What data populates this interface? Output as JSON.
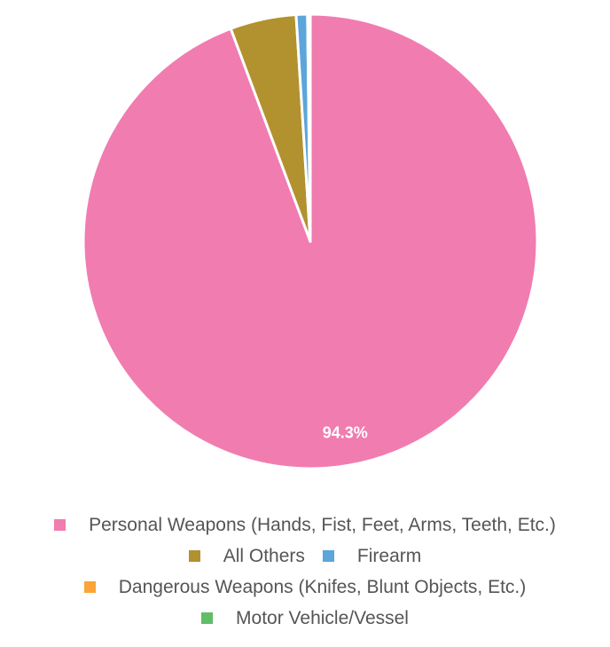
{
  "chart_data": {
    "type": "pie",
    "slices": [
      {
        "label": "Personal Weapons (Hands, Fist, Feet, Arms, Teeth, Etc.)",
        "value": 94.3,
        "color": "#f17cb0",
        "display": "94.3%"
      },
      {
        "label": "All Others",
        "value": 4.7,
        "color": "#b2912f",
        "display": ""
      },
      {
        "label": "Firearm",
        "value": 0.8,
        "color": "#5da5da",
        "display": ""
      },
      {
        "label": "Dangerous Weapons (Knifes, Blunt Objects, Etc.)",
        "value": 0.1,
        "color": "#faa43a",
        "display": ""
      },
      {
        "label": "Motor Vehicle/Vessel",
        "value": 0.1,
        "color": "#60bd68",
        "display": ""
      }
    ],
    "legend_position": "bottom"
  },
  "legend_rows": [
    [
      0
    ],
    [
      1,
      2
    ],
    [
      3
    ],
    [
      4
    ]
  ]
}
